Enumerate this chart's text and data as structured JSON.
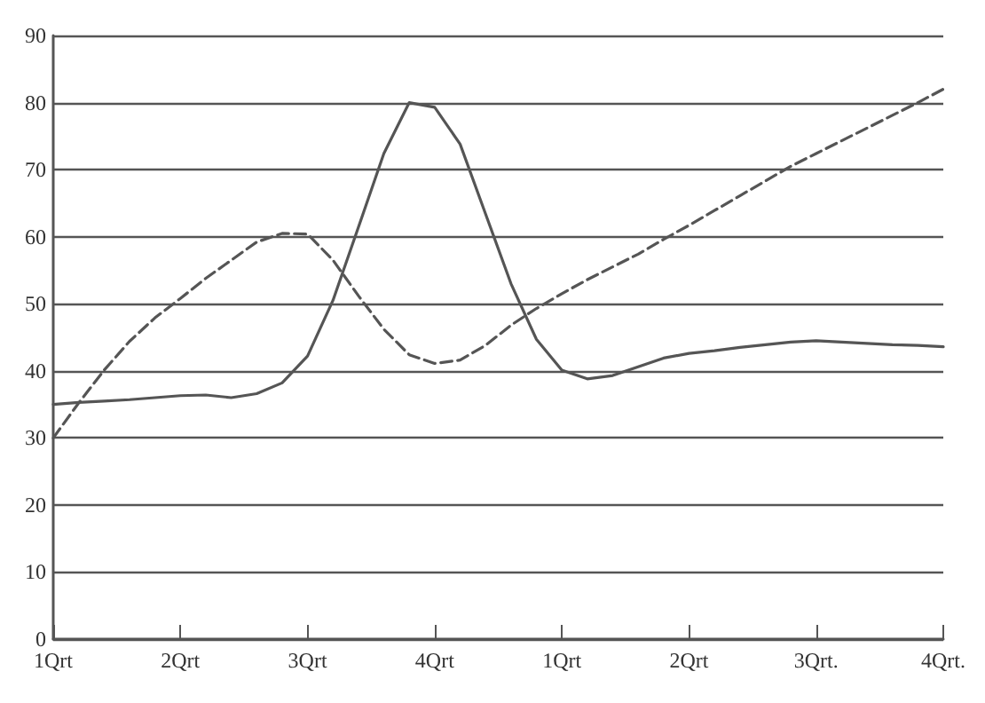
{
  "chart_data": {
    "type": "line",
    "grid": "y",
    "marker": "none",
    "categories": [
      "1Qrt",
      null,
      null,
      null,
      null,
      "2Qrt",
      null,
      null,
      null,
      null,
      "3Qrt",
      null,
      null,
      null,
      null,
      "4Qrt",
      null,
      null,
      null,
      null,
      "1Qrt",
      null,
      null,
      null,
      null,
      "2Qrt",
      null,
      null,
      null,
      null,
      "3Qrt.",
      null,
      null,
      null,
      null,
      "4Qrt."
    ],
    "ylim": [
      0,
      90
    ],
    "yticks": [
      0,
      10,
      20,
      30,
      40,
      50,
      60,
      70,
      80,
      90
    ],
    "series": [
      {
        "color": "#555555",
        "line_style": "solid",
        "values": [
          35,
          35.3,
          35.5,
          35.7,
          36,
          36.3,
          36.4,
          36,
          36.6,
          38.2,
          42.2,
          50.5,
          61.4,
          72.4,
          80,
          79.3,
          73.8,
          63.4,
          53,
          44.7,
          40.1,
          38.8,
          39.3,
          40.6,
          41.9,
          42.6,
          43,
          43.5,
          43.9,
          44.3,
          44.5,
          44.3,
          44.1,
          43.9,
          43.8,
          43.6
        ]
      },
      {
        "color": "#555555",
        "line_style": "dashed",
        "values": [
          30,
          35.2,
          40.1,
          44.4,
          47.9,
          50.8,
          53.8,
          56.5,
          59.2,
          60.5,
          60.4,
          56.5,
          51.2,
          46.2,
          42.4,
          41.1,
          41.6,
          43.8,
          46.8,
          49.3,
          51.5,
          53.6,
          55.5,
          57.4,
          59.6,
          61.7,
          63.9,
          66.1,
          68.3,
          70.5,
          72.4,
          74.3,
          76.2,
          78.1,
          80,
          82
        ]
      }
    ]
  }
}
